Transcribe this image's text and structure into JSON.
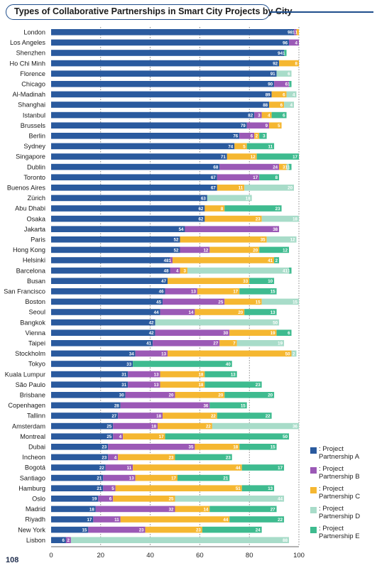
{
  "chart_data": {
    "type": "bar",
    "orientation": "horizontal",
    "stacked": true,
    "title": "Types of Collaborative Partnerships in Smart City Projects by City",
    "xlabel": "",
    "ylabel": "",
    "xlim": [
      0,
      100
    ],
    "xticks": [
      0,
      20,
      40,
      60,
      80,
      100
    ],
    "grid": "vertical-dotted",
    "legend_position": "bottom-right",
    "categories": [
      "London",
      "Los Angeles",
      "Shenzhen",
      "Ho Chi Minh",
      "Florence",
      "Chicago",
      "Al-Madinah",
      "Shanghai",
      "Istanbul",
      "Brussels",
      "Berlin",
      "Sydney",
      "Singapore",
      "Dublin",
      "Toronto",
      "Buenos Aires",
      "Zürich",
      "Abu Dhabi",
      "Osaka",
      "Jakarta",
      "Paris",
      "Hong Kong",
      "Helsinki",
      "Barcelona",
      "Busan",
      "San Francisco",
      "Boston",
      "Seoul",
      "Bangkok",
      "Vienna",
      "Taipei",
      "Stockholm",
      "Tokyo",
      "Kuala Lumpur",
      "São Paulo",
      "Brisbane",
      "Copenhagen",
      "Tallinn",
      "Amsterdam",
      "Montreal",
      "Dubai",
      "Incheon",
      "Bogotá",
      "Santiago",
      "Hamburg",
      "Oslo",
      "Madrid",
      "Riyadh",
      "New York",
      "Lisbon"
    ],
    "series": [
      {
        "name": "Project Partnership A",
        "color": "#2a5a9e",
        "values": [
          98,
          96,
          94,
          92,
          91,
          90,
          89,
          88,
          82,
          79,
          76,
          74,
          71,
          68,
          67,
          67,
          63,
          62,
          62,
          54,
          52,
          52,
          48,
          48,
          47,
          46,
          45,
          44,
          42,
          42,
          41,
          34,
          33,
          31,
          31,
          30,
          28,
          27,
          25,
          25,
          23,
          23,
          22,
          21,
          21,
          19,
          18,
          17,
          15,
          6
        ]
      },
      {
        "name": "Project Partnership B",
        "color": "#9b59b6",
        "values": [
          1,
          4,
          0,
          0,
          0,
          6,
          0,
          0,
          3,
          9,
          6,
          0,
          0,
          24,
          17,
          0,
          0,
          0,
          0,
          38,
          0,
          12,
          1,
          4,
          0,
          13,
          25,
          14,
          0,
          30,
          27,
          13,
          0,
          13,
          13,
          20,
          36,
          18,
          18,
          4,
          35,
          4,
          11,
          13,
          5,
          6,
          32,
          11,
          23,
          2
        ]
      },
      {
        "name": "Project Partnership C",
        "color": "#f5b731",
        "values": [
          1,
          0,
          0,
          8,
          0,
          0,
          6,
          6,
          4,
          5,
          2,
          5,
          12,
          3,
          0,
          11,
          0,
          8,
          23,
          0,
          35,
          20,
          41,
          3,
          33,
          17,
          15,
          20,
          0,
          19,
          7,
          50,
          0,
          18,
          18,
          20,
          0,
          22,
          22,
          17,
          18,
          23,
          44,
          17,
          51,
          25,
          14,
          44,
          23,
          0
        ]
      },
      {
        "name": "Project Partnership D",
        "color": "#a8dcc9",
        "values": [
          0,
          0,
          0,
          0,
          6,
          0,
          4,
          4,
          0,
          0,
          0,
          0,
          0,
          1,
          0,
          20,
          18,
          0,
          18,
          0,
          12,
          0,
          0,
          41,
          0,
          0,
          15,
          0,
          50,
          0,
          19,
          2,
          0,
          0,
          0,
          0,
          0,
          0,
          36,
          0,
          0,
          0,
          0,
          0,
          0,
          44,
          0,
          0,
          0,
          88
        ]
      },
      {
        "name": "Project Partnership E",
        "color": "#3ebb8f",
        "values": [
          0,
          0,
          1,
          0,
          0,
          1,
          0,
          0,
          6,
          0,
          3,
          11,
          17,
          1,
          8,
          0,
          0,
          23,
          0,
          0,
          0,
          12,
          2,
          1,
          10,
          15,
          0,
          13,
          0,
          6,
          0,
          0,
          40,
          13,
          23,
          20,
          15,
          22,
          0,
          50,
          15,
          23,
          17,
          21,
          13,
          0,
          27,
          22,
          24,
          0
        ]
      }
    ],
    "data_labels": {
      "A": [
        "98",
        "96",
        "94",
        "92",
        "91",
        "90",
        "89",
        "88",
        "82",
        "79",
        "76",
        "74",
        "71",
        "68",
        "67",
        "67",
        "63",
        "62",
        "62",
        "54",
        "52",
        "52",
        "48",
        "48",
        "47",
        "46",
        "45",
        "44",
        "42",
        "42",
        "41",
        "34",
        "33",
        "31",
        "31",
        "30",
        "28",
        "27",
        "25",
        "25",
        "23",
        "23",
        "22",
        "21",
        "21",
        "19",
        "18",
        "17",
        "15",
        "6"
      ],
      "B": [
        "1",
        "4",
        "",
        "",
        "",
        "6",
        "",
        "",
        "3",
        "9",
        "6",
        "",
        "",
        "24",
        "17",
        "",
        "",
        "",
        "",
        "38",
        "",
        "12",
        "1",
        "4",
        "",
        "13",
        "25",
        "14",
        "",
        "30",
        "27",
        "13",
        "",
        "13",
        "13",
        "20",
        "36",
        "18",
        "18",
        "4",
        "35",
        "4",
        "11",
        "13",
        "5",
        "6",
        "32",
        "11",
        "23",
        "2"
      ],
      "C": [
        "1",
        "",
        "",
        "8",
        "",
        "",
        "6",
        "6",
        "4",
        "5",
        "2",
        "5",
        "12",
        "3",
        "",
        "11",
        "",
        "8",
        "23",
        "",
        "35",
        "20",
        "41",
        "3",
        "33",
        "17",
        "15",
        "20",
        "",
        "19",
        "7",
        "50",
        "",
        "18",
        "18",
        "20",
        "",
        "22",
        "22",
        "17",
        "18",
        "23",
        "44",
        "17",
        "51",
        "25",
        "14",
        "44",
        "23",
        ""
      ],
      "D": [
        "",
        "",
        "",
        "",
        "6",
        "",
        "4",
        "4",
        "",
        "",
        "",
        "",
        "",
        "1",
        "",
        "20",
        "18",
        "",
        "18",
        "",
        "12",
        "",
        "",
        "41",
        "",
        "",
        "15",
        "",
        "50",
        "",
        "19",
        "2",
        "",
        "",
        "",
        "",
        "",
        "",
        "36",
        "",
        "",
        "",
        "",
        "",
        "",
        "44",
        "",
        "",
        "",
        "88"
      ],
      "E": [
        "",
        "",
        "1",
        "",
        "",
        "1",
        "",
        "",
        "6",
        "",
        "3",
        "11",
        "17",
        "1",
        "8",
        "",
        "",
        "23",
        "",
        "",
        "",
        "12",
        "2",
        "1",
        "10",
        "15",
        "",
        "13",
        "",
        "6",
        "",
        "",
        "40",
        "13",
        "23",
        "20",
        "15",
        "22",
        "",
        "50",
        "15",
        "23",
        "17",
        "21",
        "13",
        "",
        "27",
        "22",
        "24",
        ""
      ]
    }
  },
  "legend": {
    "items": [
      {
        "label": ": Project Partnership A",
        "color": "#2a5a9e"
      },
      {
        "label": ": Project Partnership B",
        "color": "#9b59b6"
      },
      {
        "label": ": Project Partnership C",
        "color": "#f5b731"
      },
      {
        "label": ": Project Partnership D",
        "color": "#a8dcc9"
      },
      {
        "label": ": Project Partnership E",
        "color": "#3ebb8f"
      }
    ]
  },
  "page": {
    "number": "108"
  }
}
